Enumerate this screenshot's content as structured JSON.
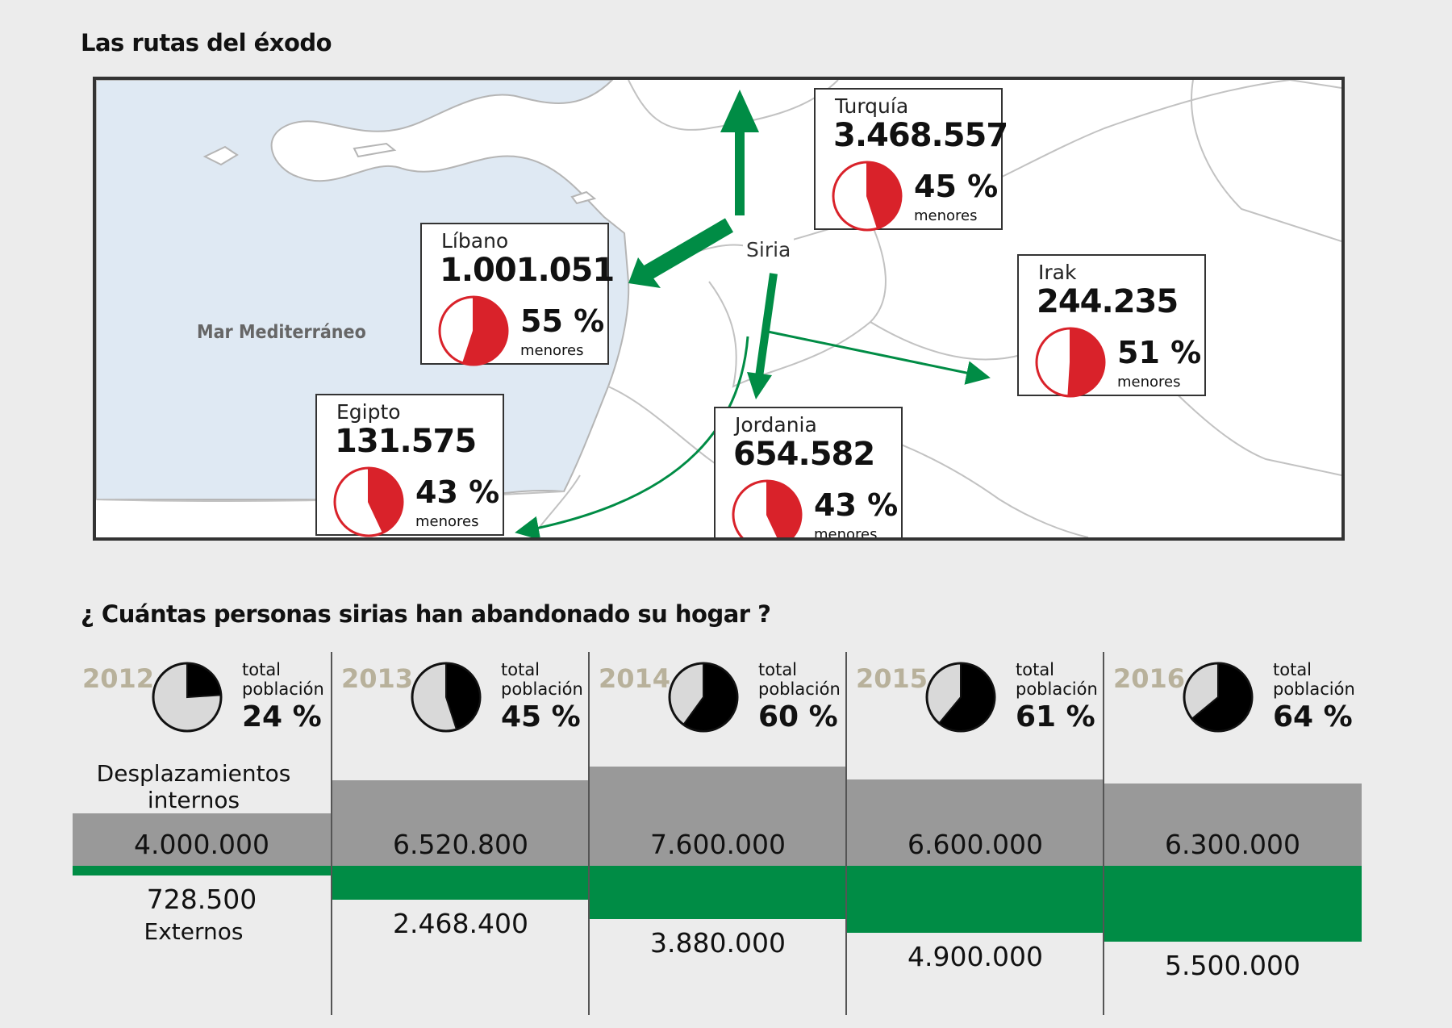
{
  "map_title": "Las rutas del éxodo",
  "sea_label": "Mar Mediterráneo",
  "origin": "Siria",
  "menores_label": "menores",
  "destinations": [
    {
      "name": "Turquía",
      "value": "3.468.557",
      "pct_text": "45 %",
      "menores": 0.45
    },
    {
      "name": "Líbano",
      "value": "1.001.051",
      "pct_text": "55 %",
      "menores": 0.55
    },
    {
      "name": "Irak",
      "value": "244.235",
      "pct_text": "51 %",
      "menores": 0.51
    },
    {
      "name": "Egipto",
      "value": "131.575",
      "pct_text": "43 %",
      "menores": 0.43
    },
    {
      "name": "Jordania",
      "value": "654.582",
      "pct_text": "43 %",
      "menores": 0.43
    }
  ],
  "question": "¿ Cuántas personas sirias han abandonado su hogar ?",
  "total_label_1": "total",
  "total_label_2": "población",
  "internal_label": "Desplazamientos internos",
  "external_label": "Externos",
  "colors": {
    "internal": "#999999",
    "external": "#008c45",
    "red": "#d9222a",
    "pie_light": "#d9d9d9"
  },
  "chart_data": {
    "type": "bar",
    "categories": [
      "2012",
      "2013",
      "2014",
      "2015",
      "2016"
    ],
    "series": [
      {
        "name": "Desplazamientos internos",
        "values": [
          4000000,
          6520800,
          7600000,
          6600000,
          6300000
        ],
        "labels": [
          "4.000.000",
          "6.520.800",
          "7.600.000",
          "6.600.000",
          "6.300.000"
        ]
      },
      {
        "name": "Externos",
        "values": [
          728500,
          2468400,
          3880000,
          4900000,
          5500000
        ],
        "labels": [
          "728.500",
          "2.468.400",
          "3.880.000",
          "4.900.000",
          "5.500.000"
        ]
      }
    ],
    "total_population_pct": [
      0.24,
      0.45,
      0.6,
      0.61,
      0.64
    ],
    "total_population_pct_text": [
      "24 %",
      "45 %",
      "60 %",
      "61 %",
      "64 %"
    ]
  }
}
